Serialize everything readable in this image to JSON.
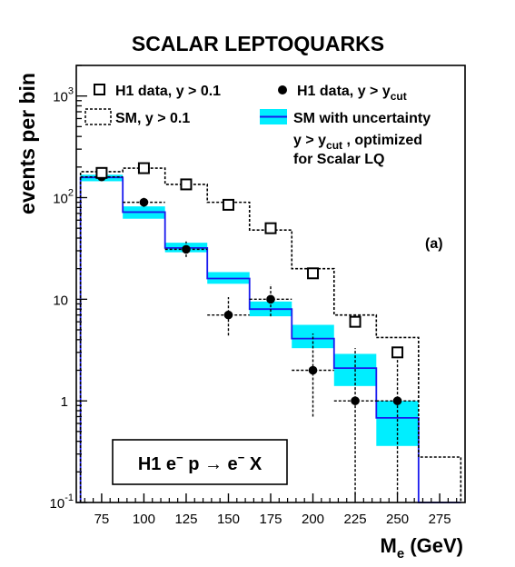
{
  "chart_data": {
    "type": "line",
    "title": "SCALAR LEPTOQUARKS",
    "panel_label": "(a)",
    "xlabel": {
      "main": "M",
      "sub": "e",
      "unit": " (GeV)"
    },
    "ylabel": "events per bin",
    "xlim": [
      60,
      290
    ],
    "ylim": [
      0.1,
      2000
    ],
    "y_scale": "log",
    "grid": false,
    "legend_placement": "top",
    "x_ticks": [
      75,
      100,
      125,
      150,
      175,
      200,
      225,
      250,
      275
    ],
    "x_tick_labels": [
      "75",
      "100",
      "125",
      "150",
      "175",
      "200",
      "225",
      "250",
      "275"
    ],
    "y_ticks": [
      {
        "value": 0.1,
        "base": "10",
        "exp": "-1"
      },
      {
        "value": 1,
        "base": "1",
        "exp": ""
      },
      {
        "value": 10,
        "base": "10",
        "exp": ""
      },
      {
        "value": 100,
        "base": "10",
        "exp": "2"
      },
      {
        "value": 1000,
        "base": "10",
        "exp": "3"
      }
    ],
    "bin_edges": [
      62.5,
      87.5,
      112.5,
      137.5,
      162.5,
      187.5,
      212.5,
      237.5,
      262.5,
      287.5
    ],
    "series": [
      {
        "name": "H1 data, y > 0.1",
        "style": "open-square",
        "color": "#000000",
        "points": [
          {
            "x": 75,
            "y": 175
          },
          {
            "x": 100,
            "y": 195
          },
          {
            "x": 125,
            "y": 135
          },
          {
            "x": 150,
            "y": 85
          },
          {
            "x": 175,
            "y": 50
          },
          {
            "x": 200,
            "y": 18
          },
          {
            "x": 225,
            "y": 6
          },
          {
            "x": 250,
            "y": 3
          }
        ]
      },
      {
        "name": "H1 data, y > y",
        "name_sub": "cut",
        "style": "filled-circle",
        "color": "#000000",
        "points": [
          {
            "x": 75,
            "y": 160,
            "lo": 148,
            "hi": 173
          },
          {
            "x": 100,
            "y": 90,
            "lo": 81,
            "hi": 100
          },
          {
            "x": 125,
            "y": 31,
            "lo": 26,
            "hi": 37
          },
          {
            "x": 150,
            "y": 7,
            "lo": 4.4,
            "hi": 10.5
          },
          {
            "x": 175,
            "y": 10,
            "lo": 6.8,
            "hi": 14
          },
          {
            "x": 200,
            "y": 2,
            "lo": 0.7,
            "hi": 4.6
          },
          {
            "x": 225,
            "y": 1,
            "lo": 0.12,
            "hi": 3.3
          },
          {
            "x": 250,
            "y": 1,
            "lo": 0.12,
            "hi": 3.3
          }
        ]
      },
      {
        "name": "SM, y > 0.1",
        "style": "dashed-histogram",
        "color": "#000000",
        "values": [
          180,
          195,
          135,
          90,
          48,
          20,
          7,
          4.2,
          0.28
        ]
      },
      {
        "name": "SM with uncertainty",
        "name_line2": "y > y",
        "name_line2_sub": "cut",
        "name_line2_tail": " , optimized",
        "name_line3": "for Scalar LQ",
        "style": "histogram-with-band",
        "color": "#1a1aee",
        "band_color": "#00eeff",
        "values": [
          158,
          72,
          32,
          16,
          8,
          4.1,
          2.1,
          0.68,
          0.1
        ],
        "band_low": [
          145,
          62,
          29,
          14.2,
          6.8,
          3.3,
          1.4,
          0.36,
          0.1
        ],
        "band_high": [
          168,
          82,
          36,
          18.5,
          9.5,
          5.6,
          2.9,
          1.0,
          0.1
        ]
      }
    ],
    "inset_box": {
      "parts": [
        {
          "text": "H1 e",
          "sup": "−"
        },
        {
          "text": " p ",
          "sup": ""
        },
        {
          "text": "→",
          "sup": ""
        },
        {
          "text": " e",
          "sup": "−"
        },
        {
          "text": " X",
          "sup": ""
        }
      ]
    }
  }
}
